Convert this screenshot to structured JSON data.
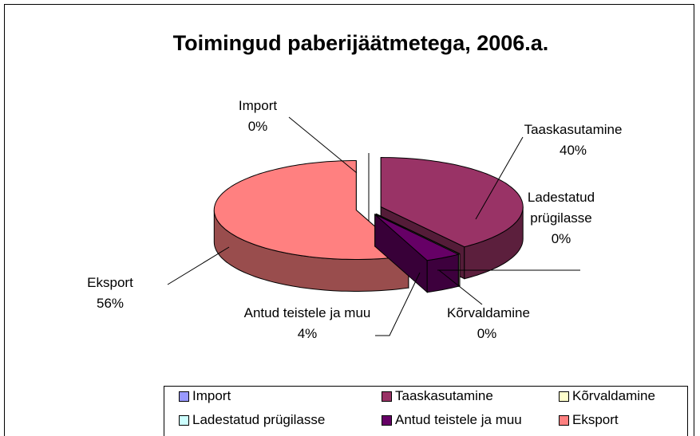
{
  "chart_data": {
    "type": "pie3d",
    "title": "Toimingud paberijäätmetega, 2006.a.",
    "categories": [
      "Import",
      "Taaskasutamine",
      "Kõrvaldamine",
      "Ladestatud prügilasse",
      "Antud teistele ja muu",
      "Eksport"
    ],
    "values": [
      0,
      40,
      0,
      0,
      4,
      56
    ],
    "value_labels": [
      "0%",
      "40%",
      "0%",
      "0%",
      "4%",
      "56%"
    ],
    "colors": [
      "#9999ff",
      "#993366",
      "#ffffcc",
      "#ccffff",
      "#660066",
      "#ff8080"
    ],
    "legend": "bottom"
  }
}
